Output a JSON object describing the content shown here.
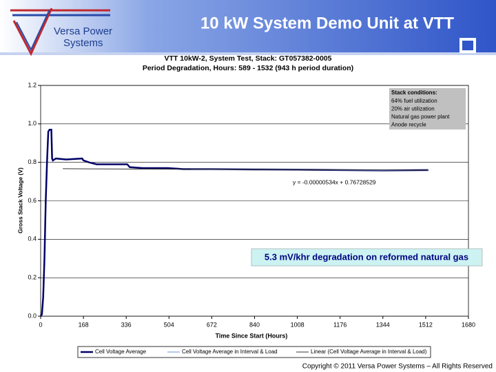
{
  "header": {
    "title": "10 kW System Demo Unit  at VTT",
    "logo_lines": [
      "Versa Power",
      "Systems"
    ]
  },
  "chart_data": {
    "type": "line",
    "title": "VTT 10kW-2, System Test, Stack: GT057382-0005",
    "subtitle": "Period Degradation, Hours: 589 - 1532 (943 h period duration)",
    "x_label": "Time Since Start (Hours)",
    "y_label": "Gross Stack Voltage (V)",
    "xlim": [
      0,
      1680
    ],
    "xticks": [
      0,
      168,
      336,
      504,
      672,
      840,
      1008,
      1176,
      1344,
      1512,
      1680
    ],
    "ylim": [
      0,
      1.2
    ],
    "yticks": [
      {
        "value": 0,
        "label": "0.0"
      },
      0.2,
      0.4,
      0.6,
      0.8,
      {
        "value": 1,
        "label": "1.0"
      },
      1.2
    ],
    "grid": true,
    "series": [
      {
        "name": "Cell Voltage Average",
        "color": "#000066",
        "width": 2.5,
        "x": [
          0,
          5,
          10,
          15,
          20,
          25,
          30,
          35,
          42,
          45,
          48,
          60,
          100,
          163,
          168,
          190,
          220,
          250,
          300,
          340,
          350,
          400,
          500,
          560,
          672,
          840,
          1008,
          1176,
          1344,
          1523
        ],
        "values": [
          0,
          0.01,
          0.1,
          0.3,
          0.6,
          0.8,
          0.96,
          0.97,
          0.97,
          0.82,
          0.81,
          0.82,
          0.815,
          0.82,
          0.81,
          0.8,
          0.79,
          0.79,
          0.79,
          0.79,
          0.775,
          0.77,
          0.77,
          0.765,
          0.765,
          0.763,
          0.762,
          0.76,
          0.758,
          0.76
        ]
      },
      {
        "name": "Cell Voltage Average in Interval & Load",
        "color": "#6e8fcf",
        "width": 1,
        "x": [
          589,
          672,
          840,
          1008,
          1176,
          1344,
          1523
        ],
        "values": [
          0.765,
          0.765,
          0.763,
          0.762,
          0.76,
          0.758,
          0.76
        ]
      },
      {
        "name": "Linear (Cell Voltage Average in Interval & Load)",
        "color": "#333333",
        "width": 1,
        "x": [
          87,
          1518
        ],
        "values": [
          0.7668,
          0.7592
        ]
      }
    ],
    "equation": "y = -0.00000534x + 0.76728529",
    "stack_conditions": {
      "title": "Stack conditions:",
      "lines": [
        "64% fuel utilization",
        "20% air utilization",
        "Natural gas power plant",
        "Anode recycle"
      ]
    },
    "highlight": "5.3 mV/khr degradation on reformed natural gas"
  },
  "footer": {
    "copyright": "Copyright © 2011 Versa Power Systems – All Rights Reserved"
  }
}
